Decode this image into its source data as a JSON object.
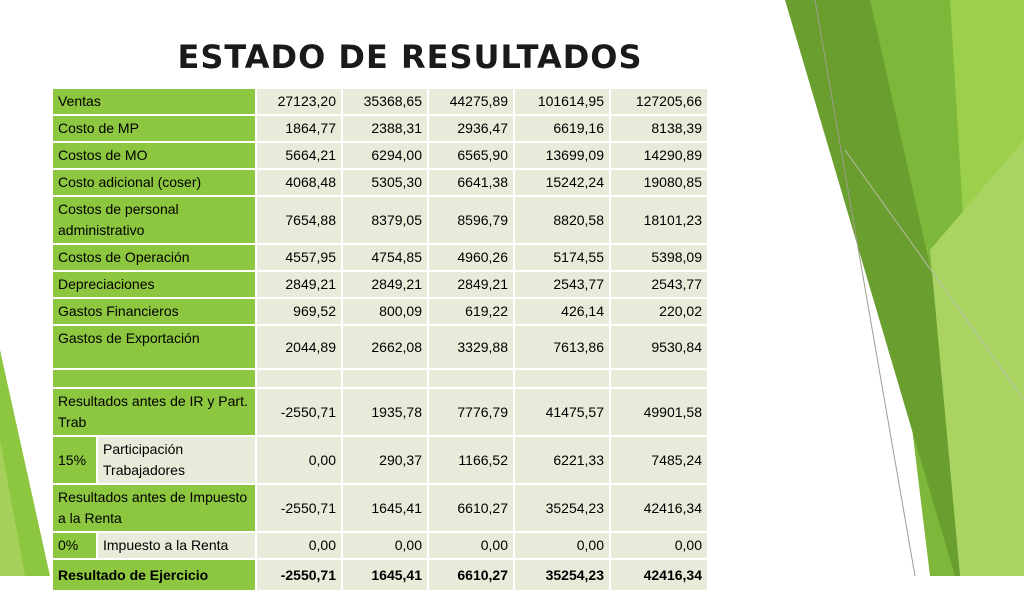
{
  "title": "ESTADO DE RESULTADOS",
  "rows": [
    {
      "label": "Ventas",
      "values": [
        "27123,20",
        "35368,65",
        "44275,89",
        "101614,95",
        "127205,66"
      ]
    },
    {
      "label": "Costo de MP",
      "values": [
        "1864,77",
        "2388,31",
        "2936,47",
        "6619,16",
        "8138,39"
      ]
    },
    {
      "label": "Costos de MO",
      "values": [
        "5664,21",
        "6294,00",
        "6565,90",
        "13699,09",
        "14290,89"
      ]
    },
    {
      "label": "Costo adicional (coser)",
      "values": [
        "4068,48",
        "5305,30",
        "6641,38",
        "15242,24",
        "19080,85"
      ]
    },
    {
      "label": "Costos de personal administrativo",
      "values": [
        "7654,88",
        "8379,05",
        "8596,79",
        "8820,58",
        "18101,23"
      ]
    },
    {
      "label": "Costos de Operación",
      "values": [
        "4557,95",
        "4754,85",
        "4960,26",
        "5174,55",
        "5398,09"
      ]
    },
    {
      "label": "Depreciaciones",
      "values": [
        "2849,21",
        "2849,21",
        "2849,21",
        "2543,77",
        "2543,77"
      ]
    },
    {
      "label": "Gastos Financieros",
      "values": [
        "969,52",
        "800,09",
        "619,22",
        "426,14",
        "220,02"
      ]
    },
    {
      "label": "Gastos de Exportación",
      "values": [
        "2044,89",
        "2662,08",
        "3329,88",
        "7613,86",
        "9530,84"
      ]
    },
    {
      "label": "Resultados antes de IR y Part. Trab",
      "values": [
        "-2550,71",
        "1935,78",
        "7776,79",
        "41475,57",
        "49901,58"
      ]
    },
    {
      "pct": "15%",
      "label": "Participación Trabajadores",
      "values": [
        "0,00",
        "290,37",
        "1166,52",
        "6221,33",
        "7485,24"
      ]
    },
    {
      "label": "Resultados antes de Impuesto a la Renta",
      "values": [
        "-2550,71",
        "1645,41",
        "6610,27",
        "35254,23",
        "42416,34"
      ]
    },
    {
      "pct": "0%",
      "label": "Impuesto a la Renta",
      "values": [
        "0,00",
        "0,00",
        "0,00",
        "0,00",
        "0,00"
      ]
    },
    {
      "label": "Resultado de Ejercicio",
      "values": [
        "-2550,71",
        "1645,41",
        "6610,27",
        "35254,23",
        "42416,34"
      ]
    }
  ]
}
